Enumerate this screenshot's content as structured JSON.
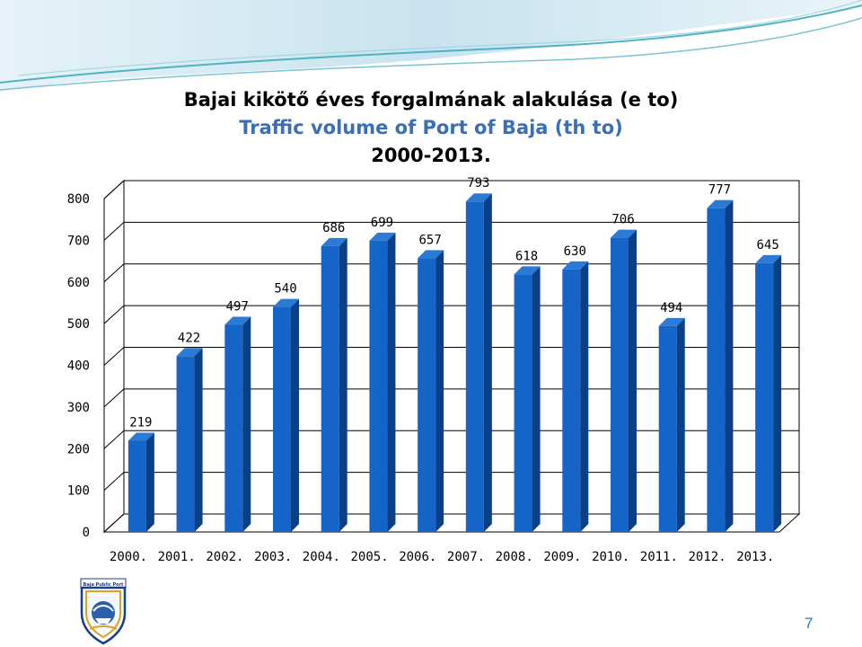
{
  "slide": {
    "title_hu": "Bajai kikötő éves forgalmának alakulása (e to)",
    "title_en": "Traffic volume of Port of Baja (th to)",
    "title_years": "2000-2013.",
    "logo_text": "Baja Public Port",
    "page_number": "7"
  },
  "colors": {
    "bar_front": "#1565c8",
    "bar_side": "#0b3f86",
    "bar_top": "#2a7ad6",
    "title_en": "#3a6fb5",
    "grid": "#000000",
    "wall": "#ffffff"
  },
  "chart_data": {
    "type": "bar",
    "categories": [
      "2000.",
      "2001.",
      "2002.",
      "2003.",
      "2004.",
      "2005.",
      "2006.",
      "2007.",
      "2008.",
      "2009.",
      "2010.",
      "2011.",
      "2012.",
      "2013."
    ],
    "values": [
      219,
      422,
      497,
      540,
      686,
      699,
      657,
      793,
      618,
      630,
      706,
      494,
      777,
      645
    ],
    "data_labels": [
      "219",
      "422",
      "497",
      "540",
      "686",
      "699",
      "657",
      "793",
      "618",
      "630",
      "706",
      "494",
      "777",
      "645"
    ],
    "y_ticks": [
      "0",
      "100",
      "200",
      "300",
      "400",
      "500",
      "600",
      "700",
      "800"
    ],
    "ylim": [
      0,
      800
    ],
    "grid": true,
    "style": "3d-column"
  }
}
